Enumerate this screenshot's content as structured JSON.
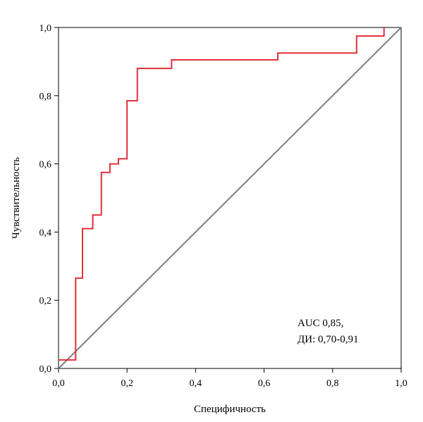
{
  "chart_data": {
    "type": "line",
    "xlabel": "Специфичность",
    "ylabel": "Чувствительность",
    "xlim": [
      0,
      1
    ],
    "ylim": [
      0,
      1
    ],
    "x_ticks": [
      "0,0",
      "0,2",
      "0,4",
      "0,6",
      "0,8",
      "1,0"
    ],
    "y_ticks": [
      "0,0",
      "0,2",
      "0,4",
      "0,6",
      "0,8",
      "1,0"
    ],
    "grid": false,
    "annotation": [
      "AUC 0,85,",
      "ДИ: 0,70-0,91"
    ],
    "series": [
      {
        "style": "step",
        "color": "#e0303a",
        "x": [
          0.0,
          0.05,
          0.05,
          0.07,
          0.07,
          0.1,
          0.1,
          0.125,
          0.125,
          0.15,
          0.15,
          0.175,
          0.175,
          0.2,
          0.2,
          0.23,
          0.23,
          0.33,
          0.33,
          0.64,
          0.64,
          0.87,
          0.87,
          0.95,
          0.95
        ],
        "y": [
          0.025,
          0.025,
          0.265,
          0.265,
          0.41,
          0.41,
          0.45,
          0.45,
          0.575,
          0.575,
          0.6,
          0.6,
          0.615,
          0.615,
          0.785,
          0.785,
          0.88,
          0.88,
          0.905,
          0.905,
          0.925,
          0.925,
          0.975,
          0.975,
          1.0
        ]
      },
      {
        "style": "diagonal",
        "color": "#7f7f7f",
        "x": [
          0,
          1
        ],
        "y": [
          0,
          1
        ]
      }
    ]
  }
}
